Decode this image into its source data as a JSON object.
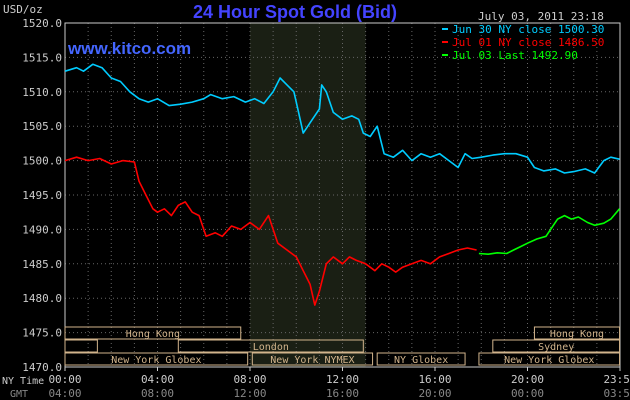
{
  "chart_data": {
    "type": "line",
    "title": "24 Hour Spot Gold (Bid)",
    "unit_label": "USD/oz",
    "watermark": "www.kitco.com",
    "timestamp": "July 03, 2011 23:18",
    "ylim": [
      1470,
      1520
    ],
    "y_ticks": [
      "1520.0",
      "1515.0",
      "1510.0",
      "1505.0",
      "1500.0",
      "1495.0",
      "1490.0",
      "1485.0",
      "1480.0",
      "1475.0",
      "1470.0"
    ],
    "xlim": [
      0,
      24
    ],
    "x_ticks_ny": [
      "00:00",
      "04:00",
      "08:00",
      "12:00",
      "16:00",
      "20:00",
      "23:59"
    ],
    "x_ticks_gmt": [
      "04:00",
      "08:00",
      "12:00",
      "16:00",
      "20:00",
      "00:00",
      "03:59"
    ],
    "x_row_labels": [
      "NY Time",
      "GMT"
    ],
    "highlight_hours": [
      8,
      13
    ],
    "grid": true,
    "legend_position": "top-right",
    "colors": {
      "blue": "#00ccff",
      "red": "#ff0000",
      "green": "#00ff00",
      "grid": "#666666",
      "axis": "#cccccc",
      "title": "#4444ff",
      "session": "#d2b48c",
      "highlight": "#1a1f14"
    },
    "series": [
      {
        "name": "Jun 30 NY close 1500.30",
        "color": "#00ccff",
        "points": [
          [
            0,
            1513
          ],
          [
            0.5,
            1513.5
          ],
          [
            0.8,
            1513
          ],
          [
            1.2,
            1514
          ],
          [
            1.6,
            1513.5
          ],
          [
            2,
            1512
          ],
          [
            2.4,
            1511.5
          ],
          [
            2.8,
            1510
          ],
          [
            3.2,
            1509
          ],
          [
            3.6,
            1508.5
          ],
          [
            4,
            1509
          ],
          [
            4.5,
            1508
          ],
          [
            5,
            1508.2
          ],
          [
            5.5,
            1508.5
          ],
          [
            6,
            1509
          ],
          [
            6.3,
            1509.6
          ],
          [
            6.8,
            1509
          ],
          [
            7.3,
            1509.3
          ],
          [
            7.8,
            1508.5
          ],
          [
            8.2,
            1509
          ],
          [
            8.6,
            1508.3
          ],
          [
            9,
            1510
          ],
          [
            9.3,
            1512
          ],
          [
            9.6,
            1511
          ],
          [
            9.9,
            1510
          ],
          [
            10.1,
            1507
          ],
          [
            10.3,
            1504
          ],
          [
            10.5,
            1505
          ],
          [
            10.7,
            1506
          ],
          [
            11,
            1507.5
          ],
          [
            11.1,
            1511
          ],
          [
            11.3,
            1510
          ],
          [
            11.6,
            1507
          ],
          [
            12,
            1506
          ],
          [
            12.4,
            1506.5
          ],
          [
            12.7,
            1506
          ],
          [
            12.9,
            1504
          ],
          [
            13.2,
            1503.5
          ],
          [
            13.5,
            1505
          ],
          [
            13.8,
            1501
          ],
          [
            14.2,
            1500.5
          ],
          [
            14.6,
            1501.5
          ],
          [
            15,
            1500
          ],
          [
            15.4,
            1501
          ],
          [
            15.8,
            1500.5
          ],
          [
            16.2,
            1501
          ],
          [
            16.6,
            1500
          ],
          [
            17,
            1499
          ],
          [
            17.3,
            1501
          ],
          [
            17.6,
            1500.3
          ],
          [
            18,
            1500.5
          ],
          [
            18.5,
            1500.8
          ],
          [
            19,
            1501
          ],
          [
            19.5,
            1501
          ],
          [
            20,
            1500.5
          ],
          [
            20.3,
            1499
          ],
          [
            20.7,
            1498.5
          ],
          [
            21.2,
            1498.8
          ],
          [
            21.6,
            1498.2
          ],
          [
            22,
            1498.4
          ],
          [
            22.5,
            1498.8
          ],
          [
            22.9,
            1498.2
          ],
          [
            23.3,
            1500
          ],
          [
            23.6,
            1500.5
          ],
          [
            23.98,
            1500.2
          ]
        ]
      },
      {
        "name": "Jul 01 NY close 1486.50",
        "color": "#ff0000",
        "points": [
          [
            0,
            1500
          ],
          [
            0.5,
            1500.5
          ],
          [
            1,
            1500
          ],
          [
            1.5,
            1500.3
          ],
          [
            2,
            1499.5
          ],
          [
            2.5,
            1500
          ],
          [
            3,
            1499.8
          ],
          [
            3.2,
            1497
          ],
          [
            3.5,
            1495
          ],
          [
            3.8,
            1493
          ],
          [
            4,
            1492.5
          ],
          [
            4.3,
            1493
          ],
          [
            4.6,
            1492
          ],
          [
            4.9,
            1493.5
          ],
          [
            5.2,
            1494
          ],
          [
            5.5,
            1492.5
          ],
          [
            5.8,
            1492
          ],
          [
            6.1,
            1489
          ],
          [
            6.5,
            1489.5
          ],
          [
            6.8,
            1489
          ],
          [
            7.2,
            1490.5
          ],
          [
            7.6,
            1490
          ],
          [
            8,
            1491
          ],
          [
            8.4,
            1490
          ],
          [
            8.8,
            1492
          ],
          [
            9.2,
            1488
          ],
          [
            9.6,
            1487
          ],
          [
            10,
            1486
          ],
          [
            10.3,
            1484
          ],
          [
            10.6,
            1482
          ],
          [
            10.8,
            1479
          ],
          [
            11,
            1481
          ],
          [
            11.3,
            1485
          ],
          [
            11.6,
            1486
          ],
          [
            12,
            1485
          ],
          [
            12.3,
            1486
          ],
          [
            12.6,
            1485.5
          ],
          [
            13,
            1485
          ],
          [
            13.4,
            1484
          ],
          [
            13.7,
            1485
          ],
          [
            14,
            1484.5
          ],
          [
            14.3,
            1483.8
          ],
          [
            14.6,
            1484.5
          ],
          [
            15,
            1485
          ],
          [
            15.4,
            1485.5
          ],
          [
            15.8,
            1485
          ],
          [
            16.2,
            1486
          ],
          [
            16.6,
            1486.5
          ],
          [
            17,
            1487
          ],
          [
            17.4,
            1487.3
          ],
          [
            17.8,
            1487
          ]
        ]
      },
      {
        "name": "Jul 03 Last 1492.90",
        "color": "#00ff00",
        "points": [
          [
            17.9,
            1486.5
          ],
          [
            18.3,
            1486.4
          ],
          [
            18.7,
            1486.6
          ],
          [
            19.1,
            1486.5
          ],
          [
            19.4,
            1487
          ],
          [
            19.7,
            1487.5
          ],
          [
            20,
            1488
          ],
          [
            20.4,
            1488.6
          ],
          [
            20.8,
            1489
          ],
          [
            21,
            1490
          ],
          [
            21.3,
            1491.5
          ],
          [
            21.6,
            1492
          ],
          [
            21.9,
            1491.5
          ],
          [
            22.2,
            1491.8
          ],
          [
            22.6,
            1491
          ],
          [
            22.9,
            1490.6
          ],
          [
            23.3,
            1490.9
          ],
          [
            23.6,
            1491.5
          ],
          [
            23.98,
            1493
          ]
        ]
      }
    ],
    "sessions": [
      {
        "label": "Hong Kong",
        "row": 0,
        "start": 0,
        "end": 7.6
      },
      {
        "label": "",
        "row": 1,
        "start": 0,
        "end": 1.4
      },
      {
        "label": "London",
        "row": 1,
        "start": 4.9,
        "end": 12.9
      },
      {
        "label": "New York Globex",
        "row": 2,
        "start": 0,
        "end": 7.9
      },
      {
        "label": "New York NYMEX",
        "row": 2,
        "start": 8.1,
        "end": 13.3
      },
      {
        "label": "NY Globex",
        "row": 2,
        "start": 13.5,
        "end": 17.3
      },
      {
        "label": "Hong Kong",
        "row": 0,
        "start": 20.3,
        "end": 23.98
      },
      {
        "label": "Sydney",
        "row": 1,
        "start": 18.5,
        "end": 23.98
      },
      {
        "label": "New York Globex",
        "row": 2,
        "start": 17.9,
        "end": 23.98
      }
    ]
  }
}
